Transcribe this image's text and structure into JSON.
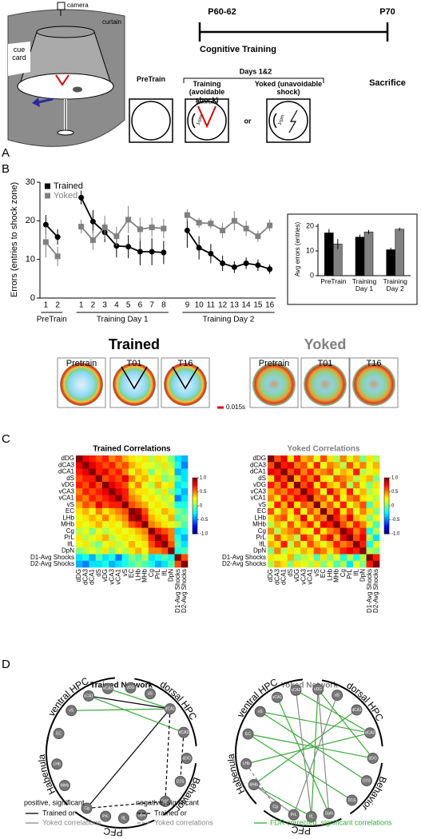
{
  "panel_labels": [
    "A",
    "B",
    "C",
    "D"
  ],
  "panel_a": {
    "camera": "camera",
    "curtain": "curtain",
    "cue_card": "cue card",
    "timeline": {
      "start": "P60-62",
      "end": "P70",
      "phase": "Cognitive Training",
      "end_event": "Sacrifice"
    },
    "days": "Days 1&2",
    "conditions": [
      "PreTrain",
      "Training (avoidable shock)",
      "Yoked (unavoidable shock)"
    ],
    "shock_zone": "shock-zone",
    "rotation": "1rpm",
    "or": "or"
  },
  "panel_b_tracks": {
    "groups": [
      {
        "title": "Trained",
        "sessions": [
          "Pretrain",
          "T01",
          "T16"
        ]
      },
      {
        "title": "Yoked",
        "sessions": [
          "Pretrain",
          "T01",
          "T16"
        ]
      }
    ],
    "scale": "0.015s"
  },
  "panel_d": {
    "networks": [
      "Trained Network",
      "Yoked Network"
    ],
    "regions": [
      "ventral HPC",
      "dorsal HPC",
      "Behavior",
      "PFC",
      "Habenula"
    ],
    "nodes": [
      "vCA1",
      "vCA3",
      "vDG",
      "vS",
      "EC",
      "LHb",
      "MHb",
      "Cg",
      "PrL",
      "IfL",
      "DpN",
      "D1S",
      "D2S",
      "dDG",
      "dCA3",
      "dCA1",
      "dS"
    ],
    "legend": {
      "positive": [
        "positive, significant",
        "Trained or",
        "Yoked correlations"
      ],
      "negative": [
        "negative, significant",
        "Trained or",
        "Yoked correlations"
      ],
      "fdr": "FDR corrected, significant correlations"
    }
  },
  "chart_data": [
    {
      "type": "line",
      "ylabel": "Errors (entries to shock zone)",
      "categories": [
        "1",
        "2",
        null,
        "1",
        "2",
        "3",
        "4",
        "5",
        "6",
        "7",
        "8",
        null,
        "9",
        "10",
        "11",
        "12",
        "13",
        "14",
        "15",
        "16"
      ],
      "group_labels": [
        "PreTrain",
        "Training Day 1",
        "Training Day 2"
      ],
      "series": [
        {
          "name": "Trained",
          "color": "#000000",
          "marker": "circle",
          "values": [
            19,
            15.8,
            null,
            26,
            19.8,
            17,
            13.5,
            13.3,
            12,
            12,
            11.8,
            null,
            17.5,
            13,
            11.5,
            9,
            8,
            9,
            8.5,
            7.5
          ],
          "errors": [
            2.5,
            2,
            null,
            1.8,
            3,
            2.5,
            3,
            3,
            3.5,
            3.5,
            3,
            null,
            4.5,
            3,
            2.5,
            2,
            1.5,
            1.5,
            1.5,
            1.2
          ]
        },
        {
          "name": "Yoked",
          "color": "#808080",
          "marker": "square",
          "values": [
            14.5,
            10.8,
            null,
            18.5,
            15,
            18.3,
            16,
            20.3,
            17.8,
            18.3,
            18,
            null,
            21.5,
            19.5,
            19.3,
            17.5,
            20,
            18,
            16,
            18.8
          ],
          "errors": [
            4,
            2.5,
            null,
            1.8,
            2.5,
            3,
            2.5,
            3.5,
            3,
            2.5,
            2.5,
            null,
            1.5,
            1.3,
            1.3,
            2,
            2.5,
            2,
            1.5,
            1.5
          ]
        }
      ],
      "ylim": [
        0,
        30
      ],
      "yticks": [
        0,
        10,
        20,
        30
      ],
      "legend": "upper left"
    },
    {
      "type": "bar",
      "ylabel": "Avg errors (entries)",
      "categories": [
        "PreTrain",
        "Training Day 1",
        "Training Day 2"
      ],
      "series": [
        {
          "name": "Trained",
          "color": "#000000",
          "values": [
            17.3,
            15.6,
            10.5
          ],
          "errors": [
            1.5,
            1,
            0.8
          ]
        },
        {
          "name": "Yoked",
          "color": "#808080",
          "values": [
            12.8,
            17.7,
            18.8
          ],
          "errors": [
            2,
            0.8,
            0.6
          ]
        }
      ],
      "ylim": [
        0,
        21
      ],
      "yticks": [
        0,
        10,
        20
      ]
    },
    {
      "type": "heatmap",
      "title": "Trained Correlations",
      "title_color": "#000000",
      "categories": [
        "dDG",
        "dCA3",
        "dCA1",
        "dS",
        "vDG",
        "vCA3",
        "vCA1",
        "vS",
        "EC",
        "LHb",
        "MHb",
        "Cg",
        "PrL",
        "IfL",
        "DpN",
        "D1-Avg Shocks",
        "D2-Avg Shocks"
      ],
      "values": [
        [
          1,
          0.8,
          0.7,
          0.6,
          0.7,
          0.5,
          0.6,
          0.4,
          0.3,
          0.2,
          0.3,
          0.1,
          0.3,
          0.2,
          0,
          -0.3,
          -0.4
        ],
        [
          0.8,
          1,
          0.8,
          0.7,
          0.6,
          0.7,
          0.5,
          0.6,
          0.4,
          0.3,
          0.2,
          0.2,
          0.1,
          0.3,
          0.1,
          -0.2,
          -0.5
        ],
        [
          0.7,
          0.8,
          1,
          0.7,
          0.8,
          0.6,
          0.7,
          0.5,
          0.2,
          0.4,
          0.3,
          0,
          0.2,
          0.1,
          0.2,
          -0.4,
          -0.3
        ],
        [
          0.6,
          0.7,
          0.7,
          1,
          0.6,
          0.7,
          0.6,
          0.8,
          0.5,
          0.3,
          0.4,
          0.2,
          0.3,
          0,
          0.1,
          -0.1,
          -0.3
        ],
        [
          0.7,
          0.6,
          0.8,
          0.6,
          1,
          0.8,
          0.7,
          0.6,
          0.3,
          0.5,
          0.2,
          0.1,
          0.4,
          0.2,
          0.3,
          -0.3,
          -0.2
        ],
        [
          0.5,
          0.7,
          0.6,
          0.7,
          0.8,
          1,
          0.8,
          0.7,
          0.4,
          0.3,
          0.3,
          0.2,
          0.1,
          0.3,
          0,
          -0.2,
          -0.4
        ],
        [
          0.6,
          0.5,
          0.7,
          0.6,
          0.7,
          0.8,
          1,
          0.7,
          0.5,
          0.4,
          0.2,
          0.3,
          0.2,
          0.1,
          0.2,
          -0.5,
          -0.3
        ],
        [
          0.4,
          0.6,
          0.5,
          0.8,
          0.6,
          0.7,
          0.7,
          1,
          0.6,
          0.5,
          0.4,
          0.2,
          0.3,
          0.2,
          0.1,
          -0.2,
          -0.2
        ],
        [
          0.3,
          0.4,
          0.2,
          0.5,
          0.3,
          0.4,
          0.5,
          0.6,
          1,
          0.9,
          0.6,
          0.3,
          0.2,
          0.4,
          0.3,
          0,
          -0.1
        ],
        [
          0.2,
          0.3,
          0.4,
          0.3,
          0.5,
          0.3,
          0.4,
          0.5,
          0.9,
          1,
          0.7,
          0.4,
          0.3,
          0.2,
          0.4,
          -0.1,
          0
        ],
        [
          0.3,
          0.2,
          0.3,
          0.4,
          0.2,
          0.3,
          0.2,
          0.4,
          0.6,
          0.7,
          1,
          0.5,
          0.4,
          0.3,
          0.2,
          0.1,
          -0.1
        ],
        [
          0.1,
          0.2,
          0,
          0.2,
          0.1,
          0.2,
          0.3,
          0.2,
          0.3,
          0.4,
          0.5,
          1,
          0.7,
          0.6,
          0.5,
          -0.3,
          -0.2
        ],
        [
          0.3,
          0.1,
          0.2,
          0.3,
          0.4,
          0.1,
          0.2,
          0.3,
          0.2,
          0.3,
          0.4,
          0.7,
          1,
          0.8,
          0.5,
          -0.2,
          -0.4
        ],
        [
          0.2,
          0.3,
          0.1,
          0,
          0.2,
          0.3,
          0.1,
          0.2,
          0.4,
          0.2,
          0.3,
          0.6,
          0.8,
          1,
          0.6,
          -0.1,
          -0.3
        ],
        [
          0,
          0.1,
          0.2,
          0.1,
          0.3,
          0,
          0.2,
          0.1,
          0.3,
          0.4,
          0.2,
          0.5,
          0.5,
          0.6,
          1,
          -0.2,
          -0.1
        ],
        [
          -0.3,
          -0.2,
          -0.4,
          -0.1,
          -0.3,
          -0.2,
          -0.5,
          -0.2,
          0,
          -0.1,
          0.1,
          -0.3,
          -0.2,
          -0.1,
          -0.2,
          1,
          0.6
        ],
        [
          -0.4,
          -0.5,
          -0.3,
          -0.3,
          -0.2,
          -0.4,
          -0.3,
          -0.2,
          -0.1,
          0,
          -0.1,
          -0.2,
          -0.4,
          -0.3,
          -0.1,
          0.6,
          1
        ]
      ],
      "clim": [
        -1,
        1
      ],
      "cticks": [
        {
          "value": 1,
          "label": "1.0"
        },
        0.5,
        0,
        -0.5,
        {
          "value": -1,
          "label": "-1.0"
        }
      ],
      "colormap": "jet"
    },
    {
      "type": "heatmap",
      "title": "Yoked Correlations",
      "title_color": "#808080",
      "categories": [
        "dDG",
        "dCA3",
        "dCA1",
        "dS",
        "vDG",
        "vCA3",
        "vCA1",
        "vS",
        "EC",
        "LHb",
        "MHb",
        "Cg",
        "PrL",
        "IfL",
        "DpN",
        "D1-Avg Shocks",
        "D2-Avg Shocks"
      ],
      "values": [
        [
          1,
          0.6,
          0.8,
          0.3,
          0.7,
          0.4,
          0.5,
          0.2,
          0.6,
          0.3,
          0.1,
          0.5,
          0.2,
          0.4,
          0,
          0.3,
          0.1
        ],
        [
          0.6,
          1,
          0.7,
          0.8,
          0.5,
          0.6,
          0.3,
          0.7,
          0.2,
          0.5,
          0.4,
          0.1,
          0.6,
          0.3,
          0.5,
          0.2,
          0.4
        ],
        [
          0.8,
          0.7,
          1,
          0.6,
          0.8,
          0.5,
          0.7,
          0.4,
          0.5,
          0.6,
          0.2,
          0.4,
          0.3,
          0.7,
          0.1,
          0.2,
          0.3
        ],
        [
          0.3,
          0.8,
          0.6,
          1,
          0.4,
          0.7,
          0.5,
          0.8,
          0.3,
          0.2,
          0.6,
          0.5,
          0.4,
          0.1,
          0.3,
          0.4,
          0
        ],
        [
          0.7,
          0.5,
          0.8,
          0.4,
          1,
          0.6,
          0.8,
          0.3,
          0.7,
          0.4,
          0.3,
          0.6,
          0.1,
          0.5,
          0.2,
          0,
          0.3
        ],
        [
          0.4,
          0.6,
          0.5,
          0.7,
          0.6,
          1,
          0.7,
          0.6,
          0.2,
          0.8,
          0.5,
          0.3,
          0.7,
          0.2,
          0.4,
          0.1,
          0.2
        ],
        [
          0.5,
          0.3,
          0.7,
          0.5,
          0.8,
          0.7,
          1,
          0.5,
          0.6,
          0.3,
          0.7,
          0.2,
          0.5,
          0.6,
          0.3,
          0.2,
          0.1
        ],
        [
          0.2,
          0.7,
          0.4,
          0.8,
          0.3,
          0.6,
          0.5,
          1,
          0.4,
          0.6,
          0.3,
          0.7,
          0.2,
          0.4,
          0.6,
          -0.1,
          0.3
        ],
        [
          0.6,
          0.2,
          0.5,
          0.3,
          0.7,
          0.2,
          0.6,
          0.4,
          1,
          0.5,
          0.8,
          0.3,
          0.6,
          0.2,
          0.5,
          0.3,
          0
        ],
        [
          0.3,
          0.5,
          0.6,
          0.2,
          0.4,
          0.8,
          0.3,
          0.6,
          0.5,
          1,
          0.7,
          0.5,
          0.8,
          0.4,
          0.3,
          0,
          0.2
        ],
        [
          0.1,
          0.4,
          0.2,
          0.6,
          0.3,
          0.5,
          0.7,
          0.3,
          0.8,
          0.7,
          1,
          0.6,
          0.4,
          0.7,
          0.5,
          0.2,
          -0.1
        ],
        [
          0.5,
          0.1,
          0.4,
          0.5,
          0.6,
          0.3,
          0.2,
          0.7,
          0.3,
          0.5,
          0.6,
          1,
          0.8,
          0.5,
          0.7,
          -0.2,
          0.1
        ],
        [
          0.2,
          0.6,
          0.3,
          0.4,
          0.1,
          0.7,
          0.5,
          0.2,
          0.6,
          0.8,
          0.4,
          0.8,
          1,
          0.6,
          0.8,
          0.1,
          -0.3
        ],
        [
          0.4,
          0.3,
          0.7,
          0.1,
          0.5,
          0.2,
          0.6,
          0.4,
          0.2,
          0.4,
          0.7,
          0.5,
          0.6,
          1,
          0.7,
          -0.2,
          0.2
        ],
        [
          0,
          0.5,
          0.1,
          0.3,
          0.2,
          0.4,
          0.3,
          0.6,
          0.5,
          0.3,
          0.5,
          0.7,
          0.8,
          0.7,
          1,
          0.1,
          0
        ],
        [
          0.3,
          0.2,
          0.2,
          0.4,
          0,
          0.1,
          0.2,
          -0.1,
          0.3,
          0,
          0.2,
          -0.2,
          0.1,
          -0.2,
          0.1,
          1,
          0.7
        ],
        [
          0.1,
          0.4,
          0.3,
          0,
          0.3,
          0.2,
          0.1,
          0.3,
          0,
          0.2,
          -0.1,
          0.1,
          -0.3,
          0.2,
          0,
          0.7,
          1
        ]
      ],
      "clim": [
        -1,
        1
      ],
      "cticks": [
        {
          "value": 1,
          "label": "1.0"
        },
        0.5,
        0,
        -0.5,
        {
          "value": -1,
          "label": "-1.0"
        }
      ],
      "colormap": "jet"
    }
  ]
}
